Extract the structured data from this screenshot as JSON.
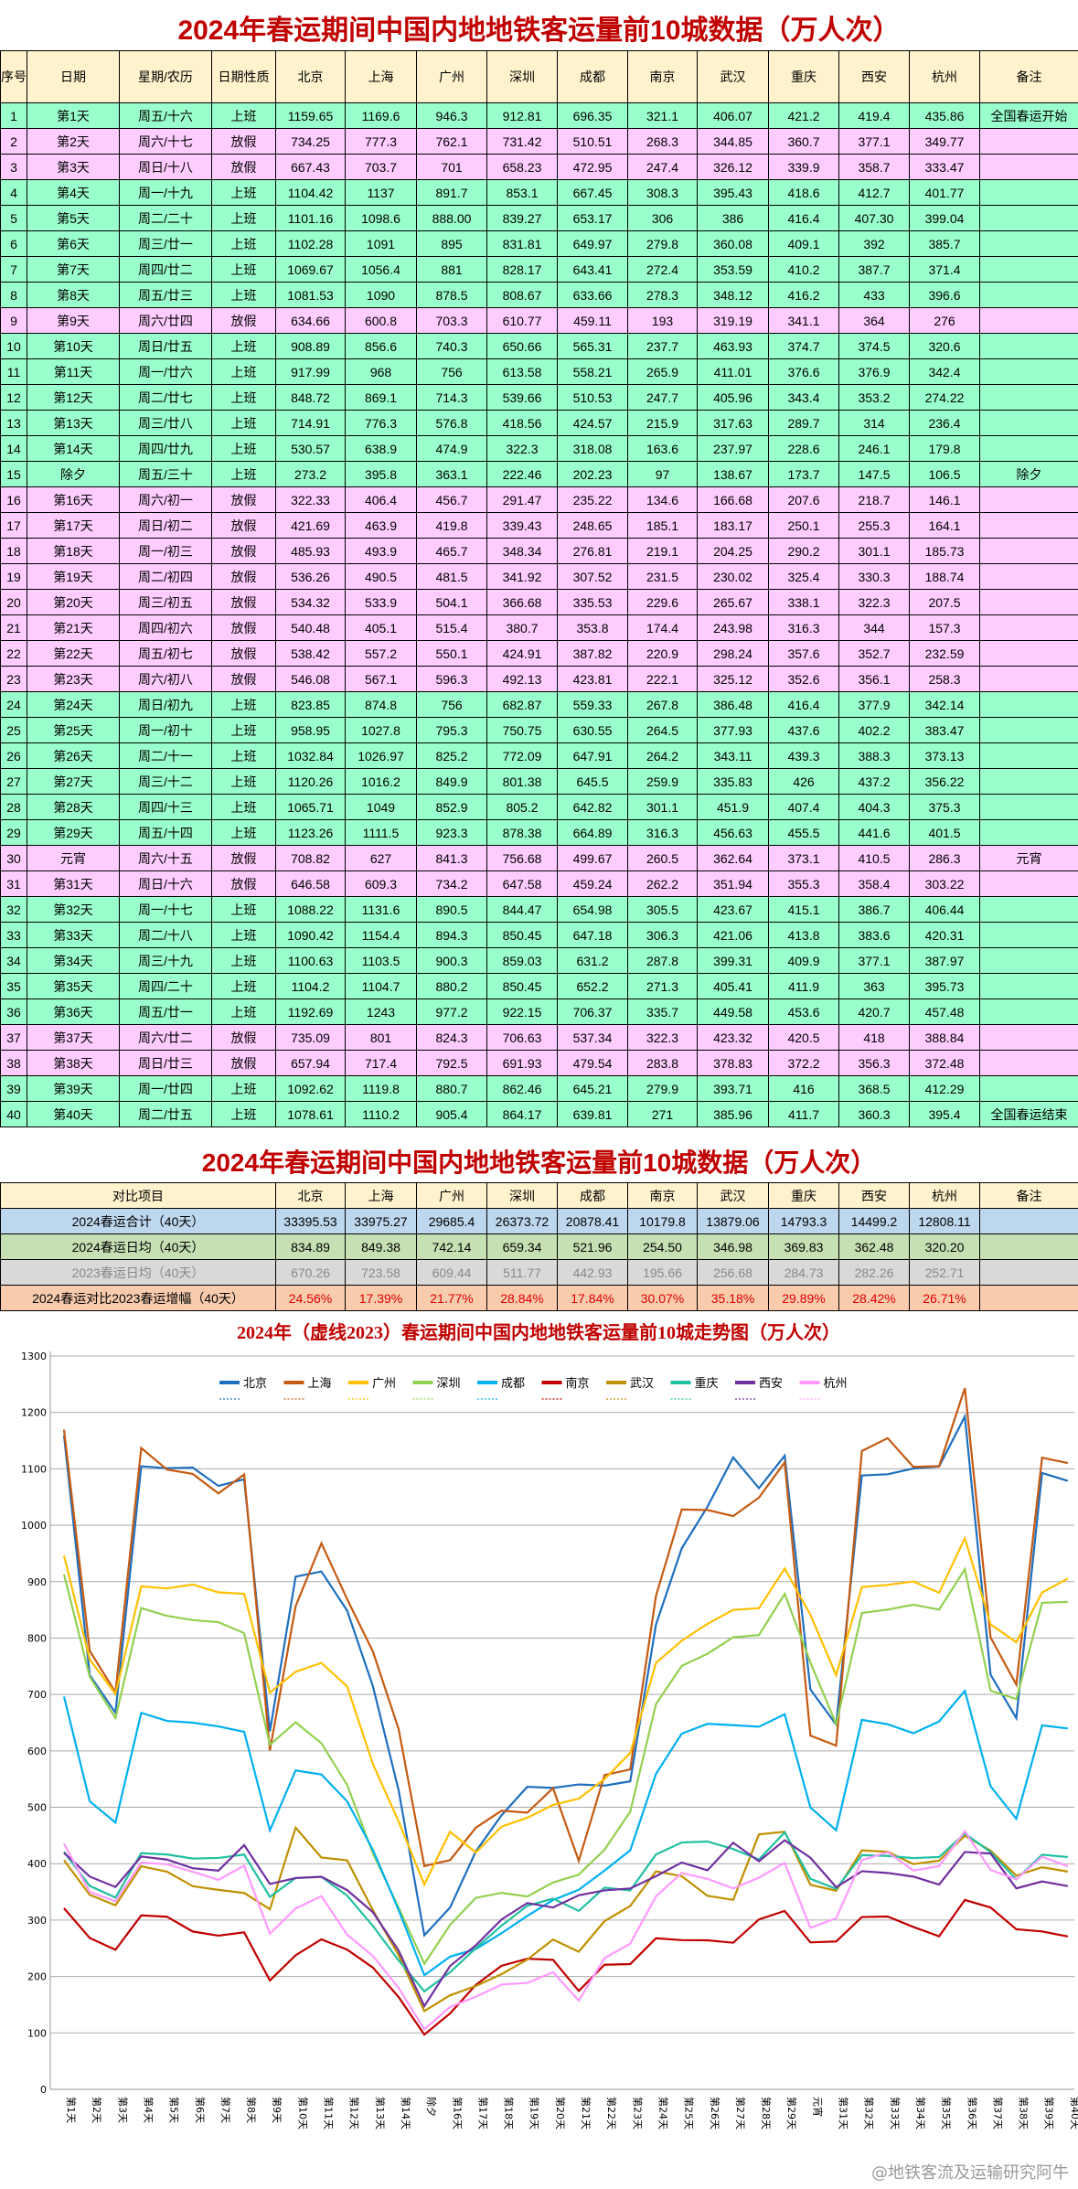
{
  "title": "2024年春运期间中国内地地铁客运量前10城数据（万人次）",
  "summary_title": "2024年春运期间中国内地地铁客运量前10城数据（万人次）",
  "watermark": "@地铁客流及运输研究阿牛",
  "table": {
    "headers": [
      "序号",
      "日期",
      "星期/农历",
      "日期性质",
      "北京",
      "上海",
      "广州",
      "深圳",
      "成都",
      "南京",
      "武汉",
      "重庆",
      "西安",
      "杭州",
      "备注"
    ],
    "row_colors": {
      "上班": "#99ffcc",
      "放假": "#ffccff"
    },
    "rows": [
      [
        "1",
        "第1天",
        "周五/十六",
        "上班",
        "全国春运开始"
      ],
      [
        "2",
        "第2天",
        "周六/十七",
        "放假",
        ""
      ],
      [
        "3",
        "第3天",
        "周日/十八",
        "放假",
        ""
      ],
      [
        "4",
        "第4天",
        "周一/十九",
        "上班",
        ""
      ],
      [
        "5",
        "第5天",
        "周二/二十",
        "上班",
        ""
      ],
      [
        "6",
        "第6天",
        "周三/廿一",
        "上班",
        ""
      ],
      [
        "7",
        "第7天",
        "周四/廿二",
        "上班",
        ""
      ],
      [
        "8",
        "第8天",
        "周五/廿三",
        "上班",
        ""
      ],
      [
        "9",
        "第9天",
        "周六/廿四",
        "放假",
        ""
      ],
      [
        "10",
        "第10天",
        "周日/廿五",
        "上班",
        ""
      ],
      [
        "11",
        "第11天",
        "周一/廿六",
        "上班",
        ""
      ],
      [
        "12",
        "第12天",
        "周二/廿七",
        "上班",
        ""
      ],
      [
        "13",
        "第13天",
        "周三/廿八",
        "上班",
        ""
      ],
      [
        "14",
        "第14天",
        "周四/廿九",
        "上班",
        ""
      ],
      [
        "15",
        "除夕",
        "周五/三十",
        "上班",
        "除夕"
      ],
      [
        "16",
        "第16天",
        "周六/初一",
        "放假",
        ""
      ],
      [
        "17",
        "第17天",
        "周日/初二",
        "放假",
        ""
      ],
      [
        "18",
        "第18天",
        "周一/初三",
        "放假",
        ""
      ],
      [
        "19",
        "第19天",
        "周二/初四",
        "放假",
        ""
      ],
      [
        "20",
        "第20天",
        "周三/初五",
        "放假",
        ""
      ],
      [
        "21",
        "第21天",
        "周四/初六",
        "放假",
        ""
      ],
      [
        "22",
        "第22天",
        "周五/初七",
        "放假",
        ""
      ],
      [
        "23",
        "第23天",
        "周六/初八",
        "放假",
        ""
      ],
      [
        "24",
        "第24天",
        "周日/初九",
        "上班",
        ""
      ],
      [
        "25",
        "第25天",
        "周一/初十",
        "上班",
        ""
      ],
      [
        "26",
        "第26天",
        "周二/十一",
        "上班",
        ""
      ],
      [
        "27",
        "第27天",
        "周三/十二",
        "上班",
        ""
      ],
      [
        "28",
        "第28天",
        "周四/十三",
        "上班",
        ""
      ],
      [
        "29",
        "第29天",
        "周五/十四",
        "上班",
        ""
      ],
      [
        "30",
        "元宵",
        "周六/十五",
        "放假",
        "元宵"
      ],
      [
        "31",
        "第31天",
        "周日/十六",
        "放假",
        ""
      ],
      [
        "32",
        "第32天",
        "周一/十七",
        "上班",
        ""
      ],
      [
        "33",
        "第33天",
        "周二/十八",
        "上班",
        ""
      ],
      [
        "34",
        "第34天",
        "周三/十九",
        "上班",
        ""
      ],
      [
        "35",
        "第35天",
        "周四/二十",
        "上班",
        ""
      ],
      [
        "36",
        "第36天",
        "周五/廿一",
        "上班",
        ""
      ],
      [
        "37",
        "第37天",
        "周六/廿二",
        "放假",
        ""
      ],
      [
        "38",
        "第38天",
        "周日/廿三",
        "放假",
        ""
      ],
      [
        "39",
        "第39天",
        "周一/廿四",
        "上班",
        ""
      ],
      [
        "40",
        "第40天",
        "周二/廿五",
        "上班",
        "全国春运结束"
      ]
    ]
  },
  "summary": {
    "headers": [
      "对比项目",
      "北京",
      "上海",
      "广州",
      "深圳",
      "成都",
      "南京",
      "武汉",
      "重庆",
      "西安",
      "杭州",
      "备注"
    ],
    "rows": [
      [
        "2024春运合计（40天）",
        "33395.53",
        "33975.27",
        "29685.4",
        "26373.72",
        "20878.41",
        "10179.8",
        "13879.06",
        "14793.3",
        "14499.2",
        "12808.11",
        ""
      ],
      [
        "2024春运日均（40天）",
        "834.89",
        "849.38",
        "742.14",
        "659.34",
        "521.96",
        "254.50",
        "346.98",
        "369.83",
        "362.48",
        "320.20",
        ""
      ],
      [
        "2023春运日均（40天）",
        "670.26",
        "723.58",
        "609.44",
        "511.77",
        "442.93",
        "195.66",
        "256.68",
        "284.73",
        "282.26",
        "252.71",
        ""
      ],
      [
        "2024春运对比2023春运增幅（40天）",
        "24.56%",
        "17.39%",
        "21.77%",
        "28.84%",
        "17.84%",
        "30.07%",
        "35.18%",
        "29.89%",
        "28.42%",
        "26.71%",
        ""
      ]
    ]
  },
  "chart_data": {
    "type": "line",
    "title": "2024年（虚线2023）春运期间中国内地地铁客运量前10城走势图（万人次）",
    "ylim": [
      0,
      1300
    ],
    "yticks": [
      0,
      100,
      200,
      300,
      400,
      500,
      600,
      700,
      800,
      900,
      1000,
      1100,
      1200,
      1300
    ],
    "grid": true,
    "legend": "top",
    "categories": [
      "第1天",
      "第2天",
      "第3天",
      "第4天",
      "第5天",
      "第6天",
      "第7天",
      "第8天",
      "第9天",
      "第10天",
      "第11天",
      "第12天",
      "第13天",
      "第14天",
      "除夕",
      "第16天",
      "第17天",
      "第18天",
      "第19天",
      "第20天",
      "第21天",
      "第22天",
      "第23天",
      "第24天",
      "第25天",
      "第26天",
      "第27天",
      "第28天",
      "第29天",
      "元宵",
      "第31天",
      "第32天",
      "第33天",
      "第34天",
      "第35天",
      "第36天",
      "第37天",
      "第38天",
      "第39天",
      "第40天"
    ],
    "series": [
      {
        "name": "北京",
        "color": "#1f6fbf",
        "values": [
          1159.65,
          734.25,
          667.43,
          1104.42,
          1101.16,
          1102.28,
          1069.67,
          1081.53,
          634.66,
          908.89,
          917.99,
          848.72,
          714.91,
          530.57,
          273.2,
          322.33,
          421.69,
          485.93,
          536.26,
          534.32,
          540.48,
          538.42,
          546.08,
          823.85,
          958.95,
          1032.84,
          1120.26,
          1065.71,
          1123.26,
          708.82,
          646.58,
          1088.22,
          1090.42,
          1100.63,
          1104.2,
          1192.69,
          735.09,
          657.94,
          1092.62,
          1078.61
        ]
      },
      {
        "name": "上海",
        "color": "#c55a11",
        "values": [
          1169.6,
          777.3,
          703.7,
          1137,
          1098.6,
          1091,
          1056.4,
          1090,
          600.8,
          856.6,
          968,
          869.1,
          776.3,
          638.9,
          395.8,
          406.4,
          463.9,
          493.9,
          490.5,
          533.9,
          405.1,
          557.2,
          567.1,
          874.8,
          1027.8,
          1026.97,
          1016.2,
          1049,
          1111.5,
          627,
          609.3,
          1131.6,
          1154.4,
          1103.5,
          1104.7,
          1243,
          801,
          717.4,
          1119.8,
          1110.2
        ]
      },
      {
        "name": "广州",
        "color": "#ffc000",
        "values": [
          946.3,
          762.1,
          701,
          891.7,
          "888.00",
          895,
          881,
          878.5,
          703.3,
          740.3,
          756,
          714.3,
          576.8,
          474.9,
          363.1,
          456.7,
          419.8,
          465.7,
          481.5,
          504.1,
          515.4,
          550.1,
          596.3,
          756,
          795.3,
          825.2,
          849.9,
          852.9,
          923.3,
          841.3,
          734.2,
          890.5,
          894.3,
          900.3,
          880.2,
          977.2,
          824.3,
          792.5,
          880.7,
          905.4
        ]
      },
      {
        "name": "深圳",
        "color": "#92d050",
        "values": [
          912.81,
          731.42,
          658.23,
          853.1,
          839.27,
          831.81,
          828.17,
          808.67,
          610.77,
          650.66,
          613.58,
          539.66,
          418.56,
          322.3,
          222.46,
          291.47,
          339.43,
          348.34,
          341.92,
          366.68,
          380.7,
          424.91,
          492.13,
          682.87,
          750.75,
          772.09,
          801.38,
          805.2,
          878.38,
          756.68,
          647.58,
          844.47,
          850.45,
          859.03,
          850.45,
          922.15,
          706.63,
          691.93,
          862.46,
          864.17
        ]
      },
      {
        "name": "成都",
        "color": "#00b0f0",
        "values": [
          696.35,
          510.51,
          472.95,
          667.45,
          653.17,
          649.97,
          643.41,
          633.66,
          459.11,
          565.31,
          558.21,
          510.53,
          424.57,
          318.08,
          202.23,
          235.22,
          248.65,
          276.81,
          307.52,
          335.53,
          353.8,
          387.82,
          423.81,
          559.33,
          630.55,
          647.91,
          645.5,
          642.82,
          664.89,
          499.67,
          459.24,
          654.98,
          647.18,
          631.2,
          652.2,
          706.37,
          537.34,
          479.54,
          645.21,
          639.81
        ]
      },
      {
        "name": "南京",
        "color": "#c00000",
        "values": [
          321.1,
          268.3,
          247.4,
          308.3,
          306,
          279.8,
          272.4,
          278.3,
          193,
          237.7,
          265.9,
          247.7,
          215.9,
          163.6,
          97,
          134.6,
          185.1,
          219.1,
          231.5,
          229.6,
          174.4,
          220.9,
          222.1,
          267.8,
          264.5,
          264.2,
          259.9,
          301.1,
          316.3,
          260.5,
          262.2,
          305.5,
          306.3,
          287.8,
          271.3,
          335.7,
          322.3,
          283.8,
          279.9,
          271
        ]
      },
      {
        "name": "武汉",
        "color": "#bf9000",
        "values": [
          406.07,
          344.85,
          326.12,
          395.43,
          386,
          360.08,
          353.59,
          348.12,
          319.19,
          463.93,
          411.01,
          405.96,
          317.63,
          237.97,
          138.67,
          166.68,
          183.17,
          204.25,
          230.02,
          265.67,
          243.98,
          298.24,
          325.12,
          386.48,
          377.93,
          343.11,
          335.83,
          451.9,
          456.63,
          362.64,
          351.94,
          423.67,
          421.06,
          399.31,
          405.41,
          449.58,
          423.32,
          378.83,
          393.71,
          385.96
        ]
      },
      {
        "name": "重庆",
        "color": "#20c0a0",
        "values": [
          421.2,
          360.7,
          339.9,
          418.6,
          416.4,
          409.1,
          410.2,
          416.2,
          341.1,
          374.7,
          376.6,
          343.4,
          289.7,
          228.6,
          173.7,
          207.6,
          250.1,
          290.2,
          325.4,
          338.1,
          316.3,
          357.6,
          352.6,
          416.4,
          437.6,
          439.3,
          426,
          407.4,
          455.5,
          373.1,
          355.3,
          415.1,
          413.8,
          409.9,
          411.9,
          453.6,
          420.5,
          372.2,
          416,
          411.7
        ]
      },
      {
        "name": "西安",
        "color": "#7030a0",
        "values": [
          419.4,
          377.1,
          358.7,
          412.7,
          "407.30",
          392,
          387.7,
          433,
          364,
          374.5,
          376.9,
          353.2,
          314,
          246.1,
          147.5,
          218.7,
          255.3,
          301.1,
          330.3,
          322.3,
          344,
          352.7,
          356.1,
          377.9,
          402.2,
          388.3,
          437.2,
          404.3,
          441.6,
          410.5,
          358.4,
          386.7,
          383.6,
          377.1,
          363,
          420.7,
          418,
          356.3,
          368.5,
          360.3
        ]
      },
      {
        "name": "杭州",
        "color": "#ff99ff",
        "values": [
          435.86,
          349.77,
          333.47,
          401.77,
          399.04,
          385.7,
          371.4,
          396.6,
          276,
          320.6,
          342.4,
          274.22,
          236.4,
          179.8,
          106.5,
          146.1,
          164.1,
          185.73,
          188.74,
          207.5,
          157.3,
          232.59,
          258.3,
          342.14,
          383.47,
          373.13,
          356.22,
          375.3,
          401.5,
          286.3,
          303.22,
          406.44,
          420.31,
          387.97,
          395.73,
          457.48,
          388.84,
          372.48,
          412.29,
          395.4
        ]
      }
    ]
  }
}
